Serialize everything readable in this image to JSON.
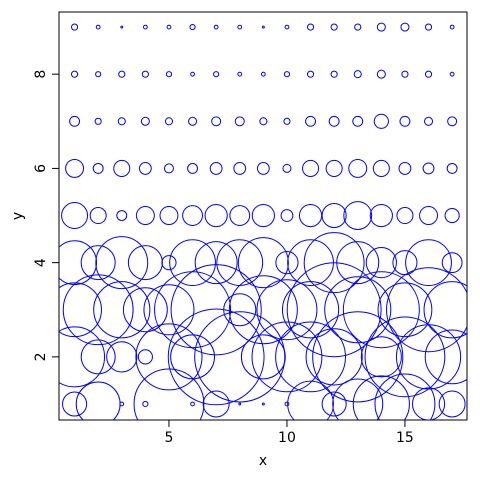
{
  "chart_data": {
    "type": "symbols",
    "xlabel": "x",
    "ylabel": "y",
    "color": "#0000ff",
    "xlim": [
      0.34,
      17.63
    ],
    "ylim": [
      0.66,
      9.32
    ],
    "xticks": [
      5,
      10,
      15
    ],
    "yticks": [
      2,
      4,
      6,
      8
    ],
    "x": [
      1,
      2,
      3,
      4,
      5,
      6,
      7,
      8,
      9,
      10,
      11,
      12,
      13,
      14,
      15,
      16,
      17,
      1,
      2,
      3,
      4,
      5,
      6,
      7,
      8,
      9,
      10,
      11,
      12,
      13,
      14,
      15,
      16,
      17,
      1,
      2,
      3,
      4,
      5,
      6,
      7,
      8,
      9,
      10,
      11,
      12,
      13,
      14,
      15,
      16,
      17,
      1,
      2,
      3,
      4,
      5,
      6,
      7,
      8,
      9,
      10,
      11,
      12,
      13,
      14,
      15,
      16,
      17,
      1,
      2,
      3,
      4,
      5,
      6,
      7,
      8,
      9,
      10,
      11,
      12,
      13,
      14,
      15,
      16,
      17,
      1,
      2,
      3,
      4,
      5,
      6,
      7,
      8,
      9,
      10,
      11,
      12,
      13,
      14,
      15,
      16,
      17,
      1,
      2,
      3,
      4,
      5,
      6,
      7,
      8,
      9,
      10,
      11,
      12,
      13,
      14,
      15,
      16,
      17,
      1,
      2,
      3,
      4,
      5,
      6,
      7,
      8,
      9,
      10,
      11,
      12,
      13,
      14,
      15,
      16,
      17,
      1,
      2,
      3,
      4,
      5,
      6,
      7,
      8,
      9,
      10,
      11,
      12,
      13,
      14,
      15,
      16,
      17
    ],
    "y": [
      1,
      1,
      1,
      1,
      1,
      1,
      1,
      1,
      1,
      1,
      1,
      1,
      1,
      1,
      1,
      1,
      1,
      2,
      2,
      2,
      2,
      2,
      2,
      2,
      2,
      2,
      2,
      2,
      2,
      2,
      2,
      2,
      2,
      2,
      3,
      3,
      3,
      3,
      3,
      3,
      3,
      3,
      3,
      3,
      3,
      3,
      3,
      3,
      3,
      3,
      3,
      4,
      4,
      4,
      4,
      4,
      4,
      4,
      4,
      4,
      4,
      4,
      4,
      4,
      4,
      4,
      4,
      4,
      5,
      5,
      5,
      5,
      5,
      5,
      5,
      5,
      5,
      5,
      5,
      5,
      5,
      5,
      5,
      5,
      5,
      6,
      6,
      6,
      6,
      6,
      6,
      6,
      6,
      6,
      6,
      6,
      6,
      6,
      6,
      6,
      6,
      6,
      7,
      7,
      7,
      7,
      7,
      7,
      7,
      7,
      7,
      7,
      7,
      7,
      7,
      7,
      7,
      7,
      7,
      8,
      8,
      8,
      8,
      8,
      8,
      8,
      8,
      8,
      8,
      8,
      8,
      8,
      8,
      8,
      8,
      8,
      9,
      9,
      9,
      9,
      9,
      9,
      9,
      9,
      9,
      9,
      9,
      9,
      9,
      9,
      9,
      9,
      9
    ],
    "sizes": [
      0.51,
      0.93,
      0.08,
      0.11,
      1.48,
      0.08,
      0.55,
      0.04,
      0.04,
      0.08,
      0.97,
      0.51,
      1.06,
      1.19,
      1.27,
      0.68,
      0.55,
      1.27,
      0.72,
      0.64,
      0.3,
      1.4,
      0.93,
      2.03,
      1.91,
      0.93,
      1.48,
      1.48,
      1.19,
      1.91,
      0.85,
      1.69,
      1.36,
      1.14,
      1.14,
      1.48,
      1.19,
      0.93,
      1.06,
      1.61,
      1.91,
      0.68,
      1.44,
      1.27,
      1.19,
      1.99,
      1.4,
      1.61,
      1.14,
      1.78,
      1.19,
      0.93,
      0.72,
      1.1,
      0.72,
      0.3,
      0.97,
      0.89,
      0.97,
      1.06,
      0.47,
      0.97,
      1.27,
      0.89,
      0.64,
      0.51,
      0.97,
      0.42,
      0.55,
      0.34,
      0.21,
      0.38,
      0.38,
      0.42,
      0.47,
      0.42,
      0.47,
      0.25,
      0.47,
      0.51,
      0.59,
      0.47,
      0.34,
      0.38,
      0.3,
      0.38,
      0.21,
      0.34,
      0.25,
      0.19,
      0.21,
      0.25,
      0.25,
      0.25,
      0.17,
      0.34,
      0.34,
      0.38,
      0.34,
      0.25,
      0.23,
      0.21,
      0.21,
      0.13,
      0.15,
      0.17,
      0.15,
      0.17,
      0.19,
      0.19,
      0.15,
      0.13,
      0.21,
      0.21,
      0.21,
      0.3,
      0.21,
      0.17,
      0.19,
      0.13,
      0.11,
      0.13,
      0.13,
      0.11,
      0.08,
      0.11,
      0.08,
      0.08,
      0.11,
      0.13,
      0.13,
      0.15,
      0.17,
      0.13,
      0.13,
      0.08,
      0.13,
      0.08,
      0.04,
      0.08,
      0.08,
      0.11,
      0.08,
      0.08,
      0.04,
      0.08,
      0.13,
      0.13,
      0.13,
      0.17,
      0.17,
      0.13,
      0.08
    ]
  }
}
